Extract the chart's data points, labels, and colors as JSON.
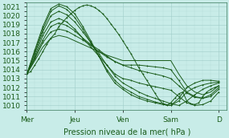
{
  "title": "",
  "xlabel": "Pression niveau de la mer( hPa )",
  "ylabel": "",
  "bg_color": "#c8ece8",
  "grid_major_color": "#a0ccc8",
  "grid_minor_color": "#b8deda",
  "line_color": "#1a5c1a",
  "ylim": [
    1009.5,
    1021.5
  ],
  "yticks": [
    1010,
    1011,
    1012,
    1013,
    1014,
    1015,
    1016,
    1017,
    1018,
    1019,
    1020,
    1021
  ],
  "day_labels": [
    "Mer",
    "Jeu",
    "Ven",
    "Sam",
    "D"
  ],
  "day_positions": [
    0,
    24,
    48,
    72,
    96
  ],
  "xlim": [
    0,
    100
  ],
  "series": [
    {
      "x": [
        0,
        2,
        4,
        6,
        8,
        10,
        12,
        14,
        16,
        18,
        20,
        22,
        24,
        26,
        28,
        30,
        32,
        34,
        36,
        38,
        40,
        42,
        44,
        46,
        48,
        50,
        52,
        54,
        56,
        58,
        60,
        62,
        64,
        66,
        68,
        70,
        72,
        74,
        76,
        78,
        80,
        82,
        84,
        86,
        88,
        90,
        92,
        94,
        96
      ],
      "y": [
        1013.5,
        1013.8,
        1014.5,
        1015.2,
        1016.0,
        1016.8,
        1017.5,
        1018.0,
        1018.8,
        1019.3,
        1019.8,
        1020.2,
        1020.6,
        1020.9,
        1021.1,
        1021.2,
        1021.1,
        1020.9,
        1020.6,
        1020.2,
        1019.7,
        1019.1,
        1018.5,
        1017.9,
        1017.2,
        1016.5,
        1015.8,
        1015.0,
        1014.2,
        1013.5,
        1012.8,
        1012.1,
        1011.4,
        1010.7,
        1010.2,
        1010.0,
        1010.3,
        1010.8,
        1011.3,
        1011.5,
        1010.5,
        1010.2,
        1010.1,
        1010.3,
        1011.0,
        1011.5,
        1011.8,
        1012.0,
        1012.2
      ],
      "marker": true
    },
    {
      "x": [
        0,
        4,
        8,
        12,
        16,
        20,
        24,
        28,
        32,
        36,
        40,
        44,
        48,
        52,
        56,
        60,
        64,
        68,
        72,
        76,
        80,
        84,
        88,
        92,
        96
      ],
      "y": [
        1013.5,
        1015.0,
        1016.5,
        1017.5,
        1017.8,
        1017.6,
        1017.2,
        1016.8,
        1016.4,
        1016.0,
        1015.6,
        1015.3,
        1015.0,
        1015.0,
        1015.0,
        1015.0,
        1015.0,
        1015.0,
        1015.0,
        1013.5,
        1012.2,
        1011.5,
        1011.2,
        1011.5,
        1012.2
      ],
      "marker": false
    },
    {
      "x": [
        0,
        4,
        8,
        12,
        16,
        20,
        24,
        28,
        32,
        36,
        40,
        44,
        48,
        52,
        56,
        60,
        64,
        68,
        72,
        76,
        80,
        84,
        88,
        92,
        96
      ],
      "y": [
        1013.5,
        1015.2,
        1017.0,
        1018.2,
        1018.5,
        1018.3,
        1017.8,
        1017.3,
        1016.7,
        1016.0,
        1015.4,
        1014.9,
        1014.5,
        1014.5,
        1014.5,
        1014.4,
        1014.3,
        1014.2,
        1014.0,
        1012.8,
        1011.5,
        1011.0,
        1010.8,
        1011.0,
        1011.8
      ],
      "marker": true
    },
    {
      "x": [
        0,
        4,
        8,
        12,
        16,
        20,
        24,
        28,
        32,
        36,
        40,
        44,
        48,
        52,
        56,
        60,
        64,
        68,
        72,
        76,
        80,
        84,
        88,
        92,
        96
      ],
      "y": [
        1013.5,
        1015.3,
        1017.3,
        1018.8,
        1019.2,
        1018.9,
        1018.3,
        1017.5,
        1016.8,
        1016.2,
        1015.5,
        1014.9,
        1014.5,
        1014.2,
        1013.9,
        1013.7,
        1013.5,
        1013.3,
        1013.0,
        1012.2,
        1011.4,
        1010.9,
        1010.8,
        1011.2,
        1012.0
      ],
      "marker": true
    },
    {
      "x": [
        0,
        4,
        8,
        12,
        16,
        20,
        24,
        28,
        32,
        36,
        40,
        44,
        48,
        52,
        56,
        60,
        64,
        68,
        72,
        76,
        80,
        84,
        88,
        92,
        96
      ],
      "y": [
        1013.5,
        1015.5,
        1017.8,
        1019.3,
        1019.7,
        1019.3,
        1018.5,
        1017.5,
        1016.5,
        1015.5,
        1014.5,
        1013.5,
        1013.0,
        1012.8,
        1012.5,
        1012.3,
        1012.1,
        1011.9,
        1011.7,
        1011.0,
        1010.3,
        1010.0,
        1010.1,
        1010.5,
        1011.5
      ],
      "marker": true
    },
    {
      "x": [
        0,
        4,
        8,
        12,
        16,
        20,
        24,
        28,
        32,
        36,
        40,
        44,
        48,
        52,
        56,
        60,
        64,
        68,
        72,
        76,
        80,
        84,
        88,
        92,
        96
      ],
      "y": [
        1013.5,
        1015.8,
        1018.2,
        1020.0,
        1020.5,
        1020.1,
        1019.3,
        1018.2,
        1017.0,
        1015.8,
        1014.5,
        1013.3,
        1012.5,
        1012.0,
        1011.5,
        1011.1,
        1010.8,
        1010.5,
        1010.2,
        1010.0,
        1010.5,
        1011.2,
        1011.8,
        1012.2,
        1012.5
      ],
      "marker": true
    },
    {
      "x": [
        0,
        4,
        8,
        12,
        16,
        20,
        24,
        28,
        32,
        36,
        40,
        44,
        48,
        52,
        56,
        60,
        64,
        68,
        72,
        76,
        80,
        84,
        88,
        92,
        96
      ],
      "y": [
        1013.5,
        1016.0,
        1018.5,
        1020.5,
        1021.1,
        1020.7,
        1019.8,
        1018.5,
        1017.0,
        1015.5,
        1014.0,
        1012.8,
        1012.0,
        1011.5,
        1011.0,
        1010.7,
        1010.4,
        1010.2,
        1010.0,
        1010.5,
        1011.5,
        1012.0,
        1012.3,
        1012.5,
        1012.6
      ],
      "marker": true
    },
    {
      "x": [
        0,
        4,
        8,
        12,
        16,
        20,
        24,
        28,
        32,
        36,
        40,
        44,
        48,
        52,
        56,
        60,
        64,
        68,
        72,
        76,
        80,
        84,
        88,
        92,
        96
      ],
      "y": [
        1013.5,
        1016.2,
        1018.8,
        1020.8,
        1021.3,
        1021.0,
        1020.2,
        1018.8,
        1017.2,
        1015.5,
        1013.8,
        1012.5,
        1011.8,
        1011.2,
        1010.8,
        1010.5,
        1010.3,
        1010.1,
        1010.0,
        1010.8,
        1012.0,
        1012.5,
        1012.8,
        1012.8,
        1012.7
      ],
      "marker": true
    }
  ],
  "font_size": 7,
  "tick_font_size": 6.5
}
